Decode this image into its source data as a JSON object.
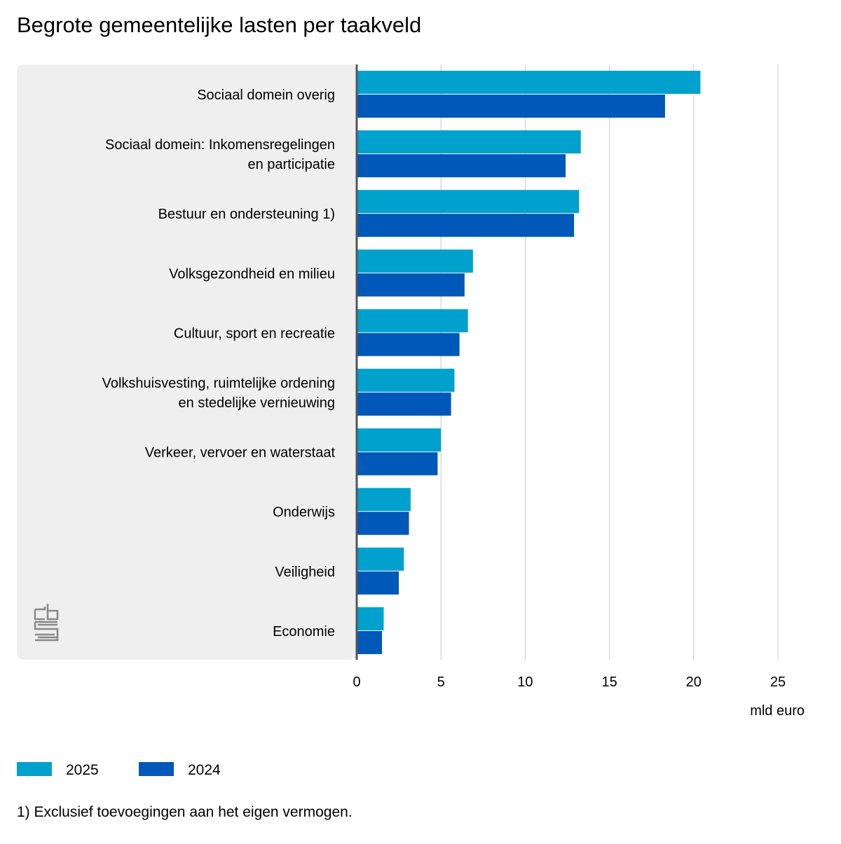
{
  "chart_data": {
    "type": "bar",
    "orientation": "horizontal",
    "title": "Begrote gemeentelijke lasten per taakveld",
    "xlabel": "mld euro",
    "xlim": [
      0,
      25
    ],
    "xticks": [
      "0",
      "5",
      "10",
      "15",
      "20",
      "25"
    ],
    "grid": true,
    "legend_position": "bottom-left",
    "categories": [
      [
        "Sociaal domein overig"
      ],
      [
        "Sociaal domein: Inkomensregelingen",
        "en participatie"
      ],
      [
        "Bestuur en ondersteuning 1)"
      ],
      [
        "Volksgezondheid en milieu"
      ],
      [
        "Cultuur, sport en recreatie"
      ],
      [
        "Volkshuisvesting, ruimtelijke ordening",
        "en stedelijke vernieuwing"
      ],
      [
        "Verkeer, vervoer en waterstaat"
      ],
      [
        "Onderwijs"
      ],
      [
        "Veiligheid"
      ],
      [
        "Economie"
      ]
    ],
    "series": [
      {
        "name": "2025",
        "color": "#00a1cd",
        "values": [
          20.4,
          13.3,
          13.2,
          6.9,
          6.6,
          5.8,
          5.0,
          3.2,
          2.8,
          1.6
        ]
      },
      {
        "name": "2024",
        "color": "#0058b8",
        "values": [
          18.3,
          12.4,
          12.9,
          6.4,
          6.1,
          5.6,
          4.8,
          3.1,
          2.5,
          1.5
        ]
      }
    ],
    "footnote": "1) Exclusief toevoegingen aan het eigen vermogen.",
    "logo": "cbs"
  }
}
